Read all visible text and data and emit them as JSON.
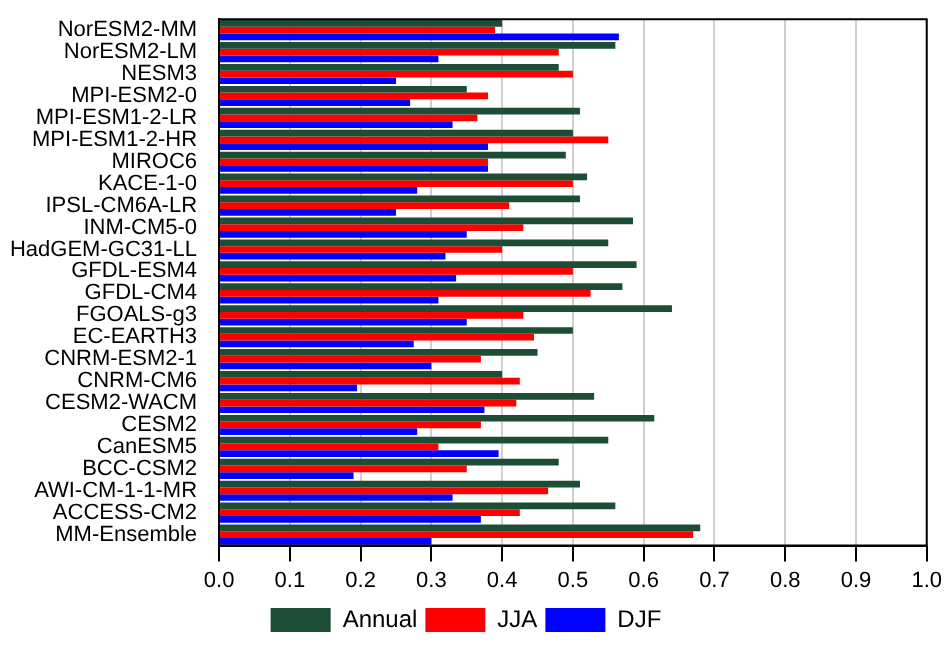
{
  "chart_data": {
    "type": "bar",
    "orientation": "horizontal",
    "categories": [
      "NorESM2-MM",
      "NorESM2-LM",
      "NESM3",
      "MPI-ESM2-0",
      "MPI-ESM1-2-LR",
      "MPI-ESM1-2-HR",
      "MIROC6",
      "KACE-1-0",
      "IPSL-CM6A-LR",
      "INM-CM5-0",
      "HadGEM-GC31-LL",
      "GFDL-ESM4",
      "GFDL-CM4",
      "FGOALS-g3",
      "EC-EARTH3",
      "CNRM-ESM2-1",
      "CNRM-CM6",
      "CESM2-WACM",
      "CESM2",
      "CanESM5",
      "BCC-CSM2",
      "AWI-CM-1-1-MR",
      "ACCESS-CM2",
      "MM-Ensemble"
    ],
    "series": [
      {
        "name": "Annual",
        "color": "#1d4d34",
        "values": [
          0.4,
          0.56,
          0.48,
          0.35,
          0.51,
          0.5,
          0.49,
          0.52,
          0.51,
          0.585,
          0.55,
          0.59,
          0.57,
          0.64,
          0.5,
          0.45,
          0.4,
          0.53,
          0.615,
          0.55,
          0.48,
          0.51,
          0.56,
          0.68
        ]
      },
      {
        "name": "JJA",
        "color": "#ff0000",
        "values": [
          0.39,
          0.48,
          0.5,
          0.38,
          0.365,
          0.55,
          0.38,
          0.5,
          0.41,
          0.43,
          0.4,
          0.5,
          0.525,
          0.43,
          0.445,
          0.37,
          0.425,
          0.42,
          0.37,
          0.31,
          0.35,
          0.465,
          0.425,
          0.67
        ]
      },
      {
        "name": "DJF",
        "color": "#0000ff",
        "values": [
          0.565,
          0.31,
          0.25,
          0.27,
          0.33,
          0.38,
          0.38,
          0.28,
          0.25,
          0.35,
          0.32,
          0.335,
          0.31,
          0.35,
          0.275,
          0.3,
          0.195,
          0.375,
          0.28,
          0.395,
          0.19,
          0.33,
          0.37,
          0.3
        ]
      }
    ],
    "xlim": [
      0,
      1
    ],
    "xticks": [
      {
        "value": 0,
        "label": "0.0"
      },
      {
        "value": 0.1,
        "label": "0.1"
      },
      {
        "value": 0.2,
        "label": "0.2"
      },
      {
        "value": 0.3,
        "label": "0.3"
      },
      {
        "value": 0.4,
        "label": "0.4"
      },
      {
        "value": 0.5,
        "label": "0.5"
      },
      {
        "value": 0.6,
        "label": "0.6"
      },
      {
        "value": 0.7,
        "label": "0.7"
      },
      {
        "value": 0.8,
        "label": "0.8"
      },
      {
        "value": 0.9,
        "label": "0.9"
      },
      {
        "value": 1,
        "label": "1.0"
      }
    ],
    "grid": "x",
    "legend": "bottom"
  }
}
